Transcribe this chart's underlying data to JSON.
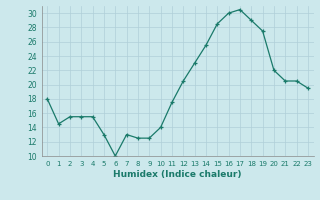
{
  "x": [
    0,
    1,
    2,
    3,
    4,
    5,
    6,
    7,
    8,
    9,
    10,
    11,
    12,
    13,
    14,
    15,
    16,
    17,
    18,
    19,
    20,
    21,
    22,
    23
  ],
  "y": [
    18,
    14.5,
    15.5,
    15.5,
    15.5,
    13,
    10,
    13,
    12.5,
    12.5,
    14,
    17.5,
    20.5,
    23,
    25.5,
    28.5,
    30,
    30.5,
    29,
    27.5,
    22,
    20.5,
    20.5,
    19.5
  ],
  "xlabel": "Humidex (Indice chaleur)",
  "ylim": [
    10,
    31
  ],
  "xlim": [
    -0.5,
    23.5
  ],
  "yticks": [
    10,
    12,
    14,
    16,
    18,
    20,
    22,
    24,
    26,
    28,
    30
  ],
  "xticks": [
    0,
    1,
    2,
    3,
    4,
    5,
    6,
    7,
    8,
    9,
    10,
    11,
    12,
    13,
    14,
    15,
    16,
    17,
    18,
    19,
    20,
    21,
    22,
    23
  ],
  "line_color": "#1a7a6a",
  "marker": "+",
  "bg_color": "#cce8ec",
  "grid_color": "#b0cfd8",
  "tick_color": "#1a7a6a"
}
